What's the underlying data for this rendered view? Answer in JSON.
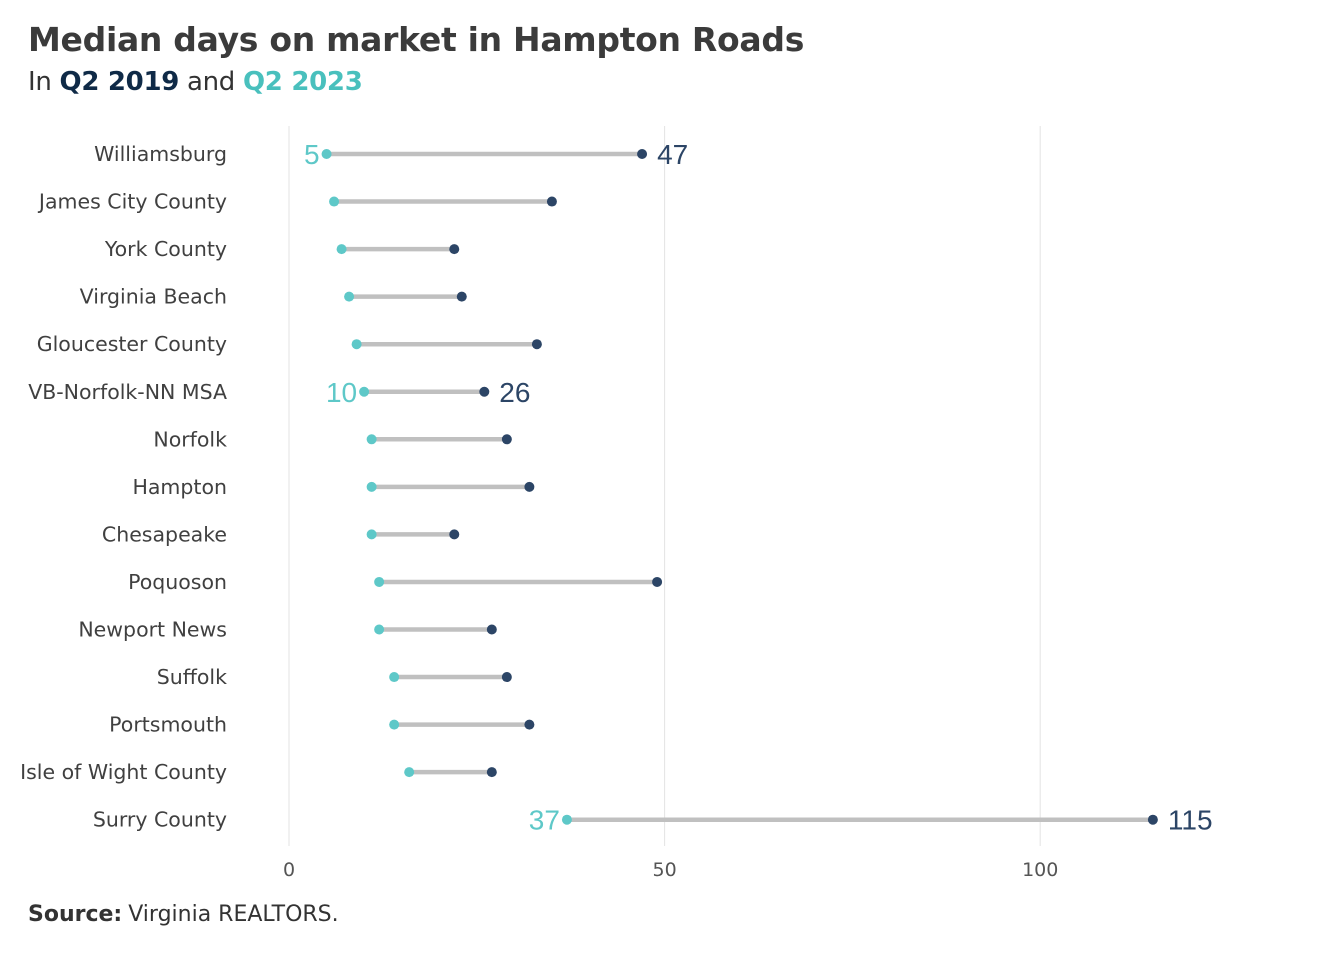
{
  "title": "Median days on market in Hampton Roads",
  "subtitle": {
    "prefix": "In",
    "series_2019": "Q2 2019",
    "conj": "and",
    "series_2023": "Q2 2023"
  },
  "colors": {
    "q2_2019": "#2c4566",
    "q2_2023": "#5ec8c8",
    "connector": "#c0c0c0",
    "grid": "#e3e3e3",
    "subtitle_2019": "#0f2a47",
    "subtitle_2023": "#49c0bd"
  },
  "source": {
    "label": "Source:",
    "text": "Virginia REALTORS."
  },
  "chart_data": {
    "type": "dumbbell",
    "title": "Median days on market in Hampton Roads",
    "subtitle": "In Q2 2019 and Q2 2023",
    "xlim": [
      0,
      130
    ],
    "xticks": [
      0,
      50,
      100
    ],
    "grid": true,
    "categories": [
      "Williamsburg",
      "James City County",
      "York County",
      "Virginia Beach",
      "Gloucester County",
      "VB-Norfolk-NN MSA",
      "Norfolk",
      "Hampton",
      "Chesapeake",
      "Poquoson",
      "Newport News",
      "Suffolk",
      "Portsmouth",
      "Isle of Wight County",
      "Surry County"
    ],
    "series": [
      {
        "name": "Q2 2019",
        "values": [
          47,
          35,
          22,
          23,
          33,
          26,
          29,
          32,
          22,
          49,
          27,
          29,
          32,
          27,
          115
        ]
      },
      {
        "name": "Q2 2023",
        "values": [
          5,
          6,
          7,
          8,
          9,
          10,
          11,
          11,
          11,
          12,
          12,
          14,
          14,
          16,
          37
        ]
      }
    ],
    "labeled_rows": [
      "Williamsburg",
      "VB-Norfolk-NN MSA",
      "Surry County"
    ]
  }
}
